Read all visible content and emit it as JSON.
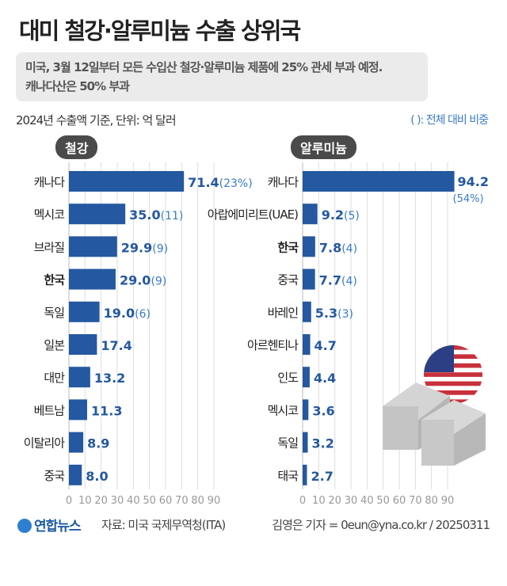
{
  "title": "대미 철강·알루미늄 수출 상위국",
  "note_line1": "미국, 3월 12일부터 모든 수입산 철강·알루미늄 제품에 25% 관세 부과 예정.",
  "note_line2": "캐나다산은 50% 부과",
  "unit_label": "2024년 수출액 기준, 단위: 억 달러",
  "legend_note": "( ): 전체 대비 비중",
  "footer": {
    "logo": "연합뉴스",
    "source": "자료: 미국 국제무역청(ITA)",
    "credit": "김영은 기자 = 0eun@yna.co.kr / 20250311"
  },
  "colors": {
    "bar": "#2458a0",
    "share": "#3a7bc8",
    "grid": "#dddddd"
  },
  "chart_data": [
    {
      "type": "bar",
      "orientation": "horizontal",
      "title": "철강",
      "categories": [
        "캐나다",
        "멕시코",
        "브라질",
        "한국",
        "독일",
        "일본",
        "대만",
        "베트남",
        "이탈리아",
        "중국"
      ],
      "values": [
        71.4,
        35.0,
        29.9,
        29.0,
        19.0,
        17.4,
        13.2,
        11.3,
        8.9,
        8.0
      ],
      "value_labels": [
        "71.4",
        "35.0",
        "29.9",
        "29.0",
        "19.0",
        "17.4",
        "13.2",
        "11.3",
        "8.9",
        "8.0"
      ],
      "shares": [
        "(23%)",
        "(11)",
        "(9)",
        "(9)",
        "(6)",
        "",
        "",
        "",
        "",
        ""
      ],
      "highlight": "한국",
      "xlim": [
        0,
        90
      ],
      "xticks": [
        0,
        10,
        20,
        30,
        40,
        50,
        60,
        70,
        80,
        90
      ],
      "grid": true
    },
    {
      "type": "bar",
      "orientation": "horizontal",
      "title": "알루미늄",
      "categories": [
        "캐나다",
        "아랍에미리트(UAE)",
        "한국",
        "중국",
        "바레인",
        "아르헨티나",
        "인도",
        "멕시코",
        "독일",
        "태국"
      ],
      "values": [
        94.2,
        9.2,
        7.8,
        7.7,
        5.3,
        4.7,
        4.4,
        3.6,
        3.2,
        2.7
      ],
      "value_labels": [
        "94.2",
        "9.2",
        "7.8",
        "7.7",
        "5.3",
        "4.7",
        "4.4",
        "3.6",
        "3.2",
        "2.7"
      ],
      "shares": [
        "(54%)",
        "(5)",
        "(4)",
        "(4)",
        "(3)",
        "",
        "",
        "",
        "",
        ""
      ],
      "highlight": "한국",
      "xlim": [
        0,
        90
      ],
      "xticks": [
        0,
        10,
        20,
        30,
        40,
        50,
        60,
        70,
        80,
        90
      ],
      "grid": true
    }
  ]
}
